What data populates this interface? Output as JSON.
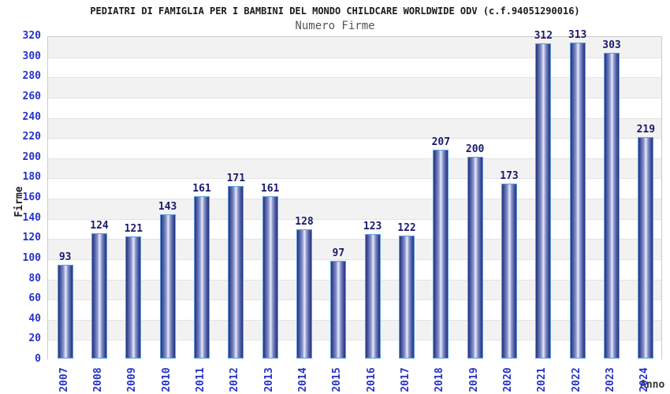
{
  "header": {
    "title": "PEDIATRI DI FAMIGLIA PER I BAMBINI DEL MONDO CHILDCARE WORLDWIDE ODV (c.f.94051290016)",
    "subtitle": "Numero Firme"
  },
  "chart_data": {
    "type": "bar",
    "title": "PEDIATRI DI FAMIGLIA PER I BAMBINI DEL MONDO CHILDCARE WORLDWIDE ODV (c.f.94051290016)",
    "subtitle": "Numero Firme",
    "categories": [
      "2007",
      "2008",
      "2009",
      "2010",
      "2011",
      "2012",
      "2013",
      "2014",
      "2015",
      "2016",
      "2017",
      "2018",
      "2019",
      "2020",
      "2021",
      "2022",
      "2023",
      "2024"
    ],
    "values": [
      93,
      124,
      121,
      143,
      161,
      171,
      161,
      128,
      97,
      123,
      122,
      207,
      200,
      173,
      312,
      313,
      303,
      219
    ],
    "xlabel": "Anno",
    "ylabel": "Firme",
    "ylim": [
      0,
      320
    ],
    "ytick_step": 20,
    "grid": "horizontal-bands",
    "legend": "none",
    "colors": {
      "bar_dark": "#28327c",
      "bar_mid": "#8e9ad1",
      "bar_highlight": "#e9ecf8",
      "bar_border": "#5f9fd9",
      "tick_label": "#2633c8",
      "value_label": "#1a1a6e",
      "band_gray": "#f2f2f2",
      "grid_line": "#e3e3e3",
      "plot_border": "#cccccc",
      "title_color": "#1a1a1a",
      "subtitle_color": "#555555"
    }
  }
}
